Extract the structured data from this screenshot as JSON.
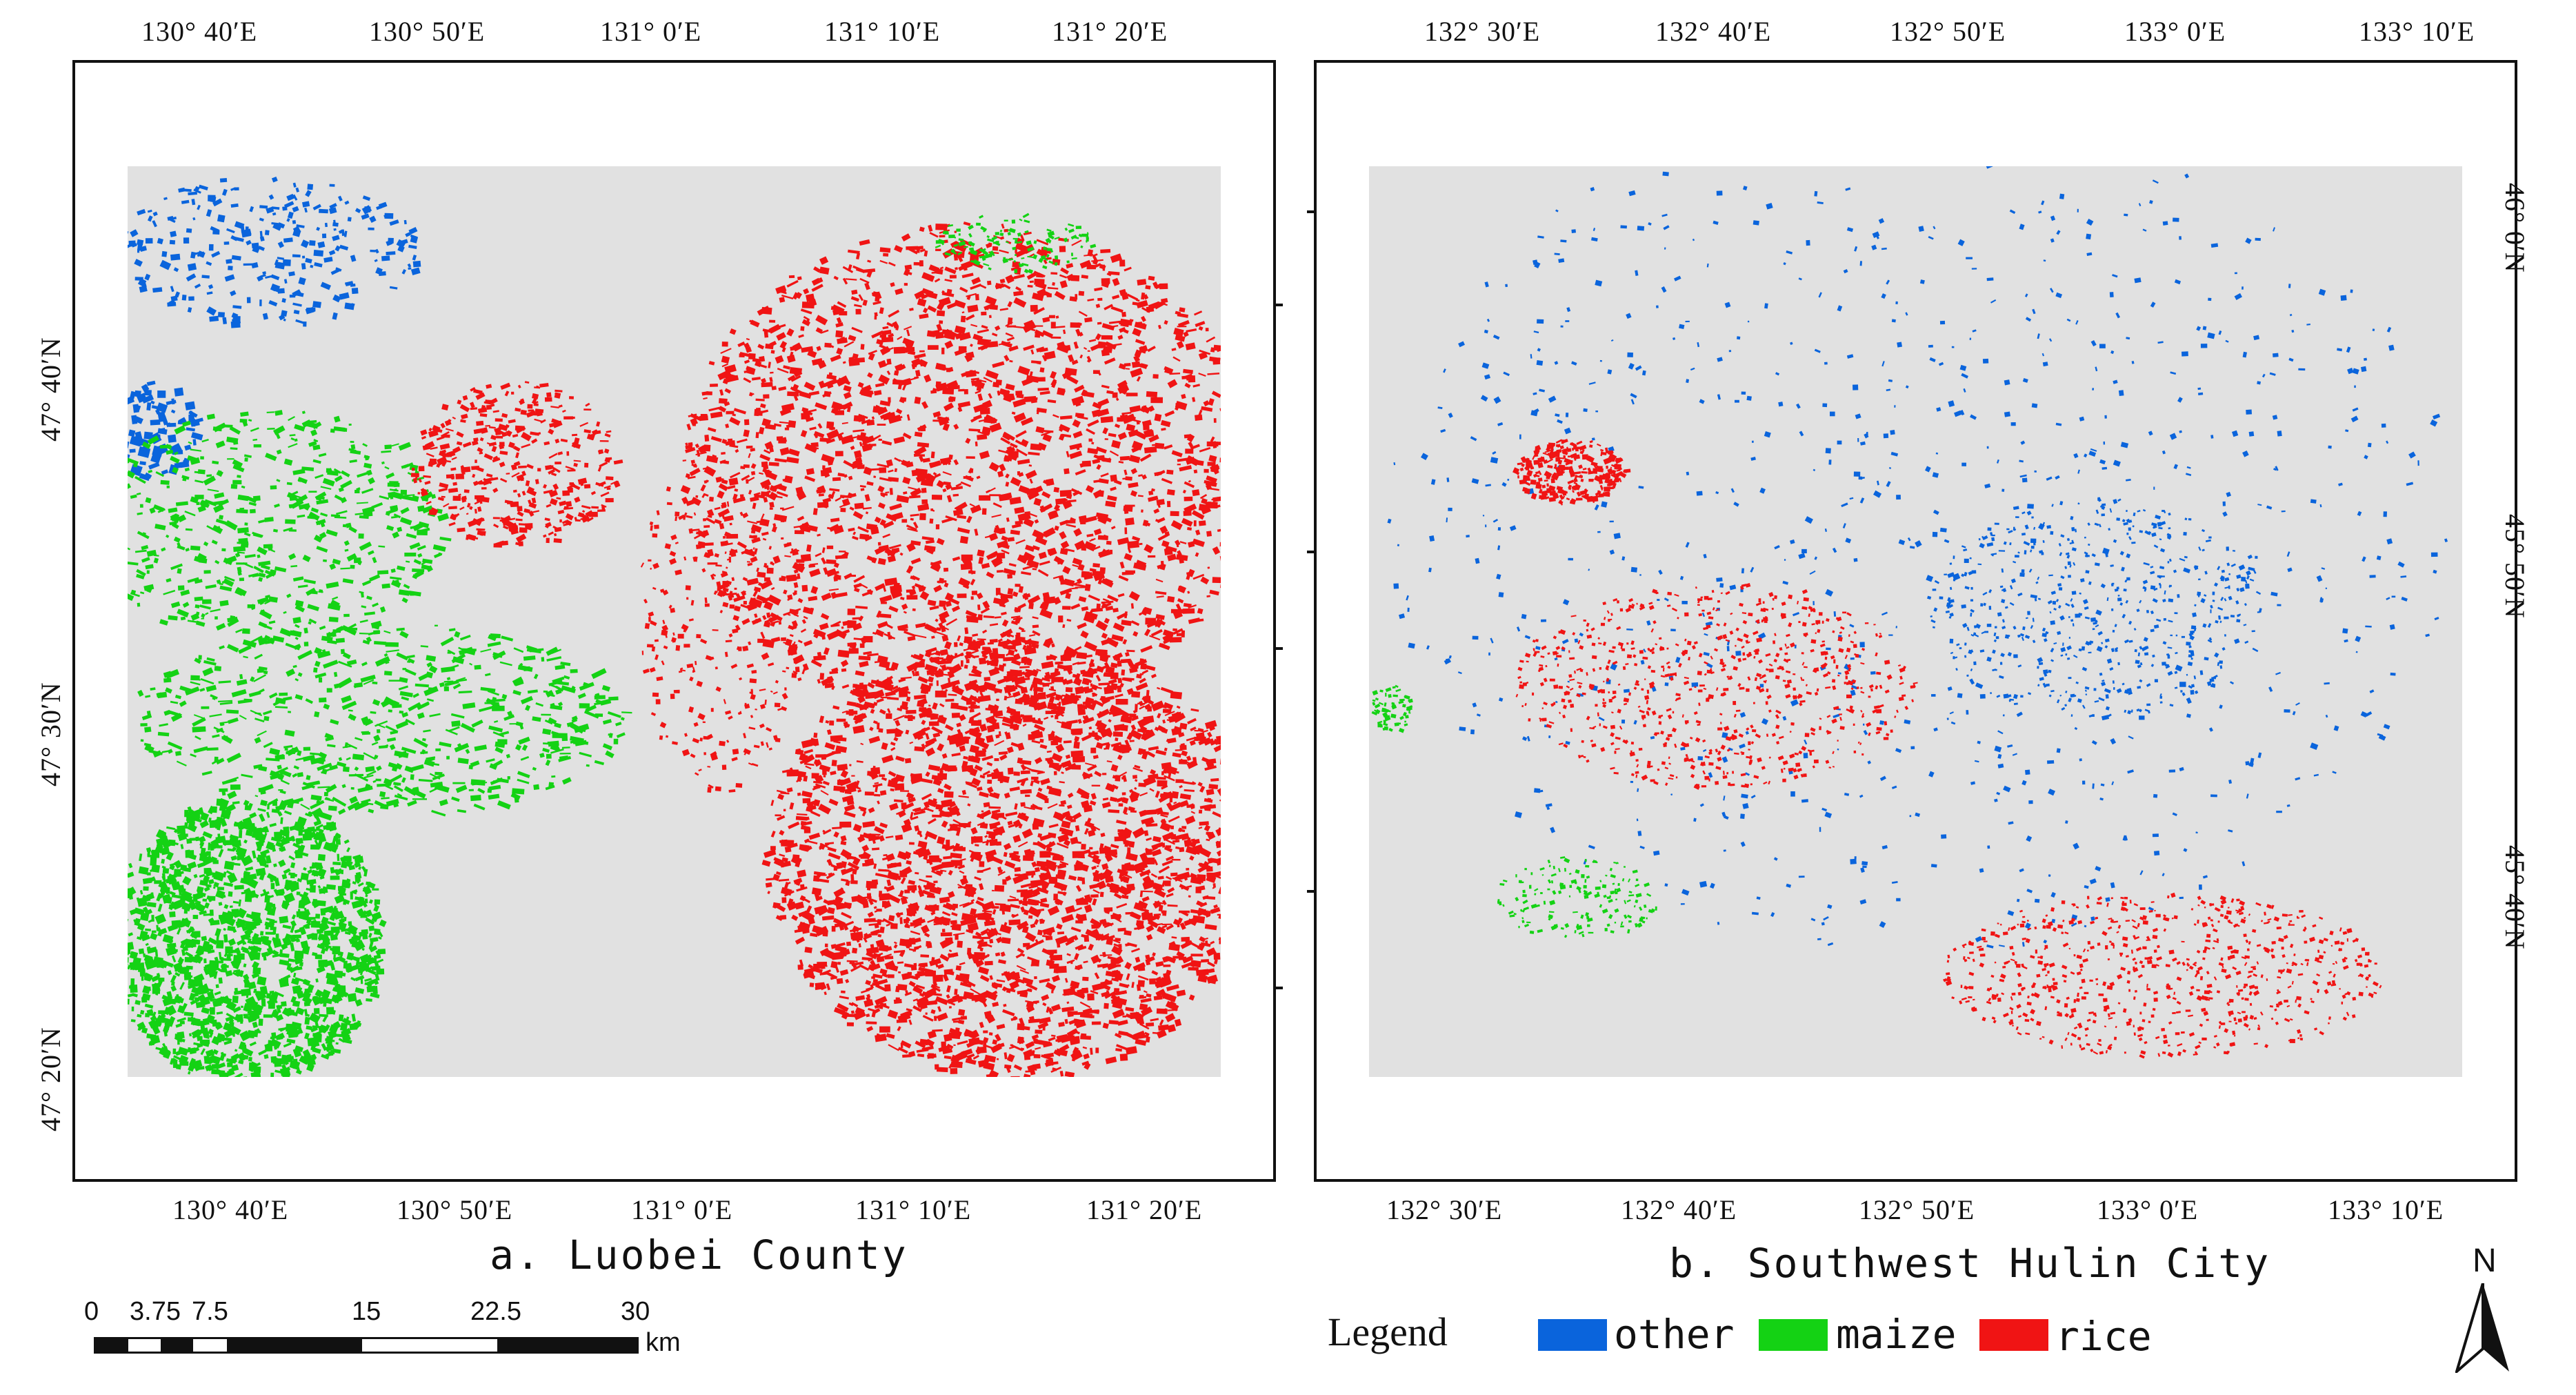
{
  "panel_a": {
    "caption": "a. Luobei County",
    "top_labels": [
      "130° 40′E",
      "130° 50′E",
      "131° 0′E",
      "131° 10′E",
      "131° 20′E"
    ],
    "bottom_labels": [
      "130° 40′E",
      "130° 50′E",
      "131° 0′E",
      "131° 10′E",
      "131° 20′E"
    ],
    "left_labels": [
      "47° 40′N",
      "47° 30′N",
      "47° 20′N"
    ]
  },
  "panel_b": {
    "caption": "b. Southwest Hulin City",
    "top_labels": [
      "132° 30′E",
      "132° 40′E",
      "132° 50′E",
      "133° 0′E",
      "133° 10′E"
    ],
    "bottom_labels": [
      "132° 30′E",
      "132° 40′E",
      "132° 50′E",
      "133° 0′E",
      "133° 10′E"
    ],
    "right_labels": [
      "46° 0′N",
      "45° 50′N",
      "45° 40′N"
    ]
  },
  "scale_bar": {
    "labels": [
      "0",
      "3.75",
      "7.5",
      "15",
      "22.5",
      "30"
    ],
    "unit": "km"
  },
  "legend": {
    "title": "Legend",
    "items": [
      {
        "label": "other",
        "color": "#0a64dc"
      },
      {
        "label": "maize",
        "color": "#14d214"
      },
      {
        "label": "rice",
        "color": "#f01414"
      }
    ]
  },
  "north_arrow": {
    "label": "N"
  },
  "colors": {
    "background": "#e1e1e1",
    "other": "#0a64dc",
    "maize": "#14d214",
    "rice": "#f01414"
  }
}
